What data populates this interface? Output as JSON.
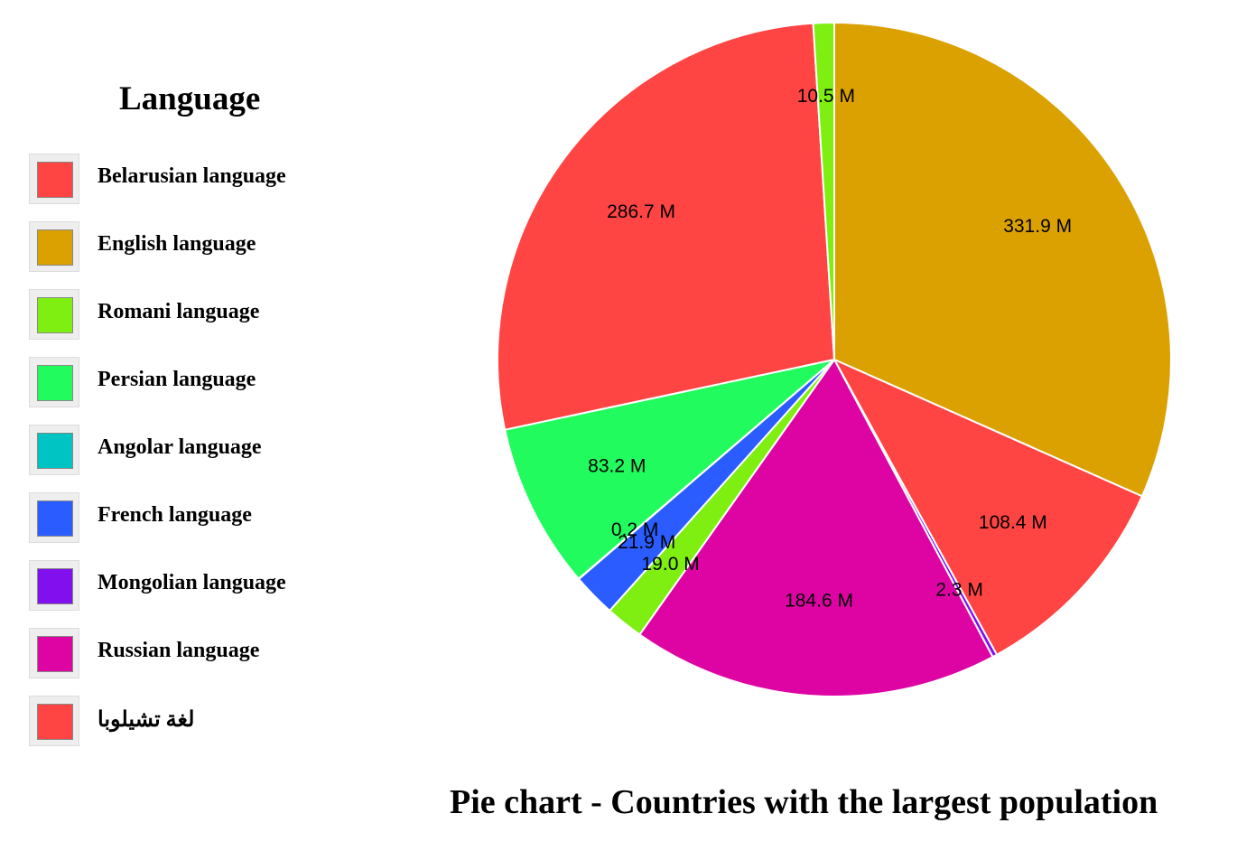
{
  "chart_data": {
    "type": "pie",
    "title": "Pie chart - Countries with the largest population",
    "legend_title": "Language",
    "legend_position": "left",
    "legend": [
      {
        "label": "Belarusian language",
        "color": "#ff4444"
      },
      {
        "label": "English language",
        "color": "#dba100"
      },
      {
        "label": "Romani language",
        "color": "#7eef11"
      },
      {
        "label": "Persian language",
        "color": "#22fb5e"
      },
      {
        "label": "Angolar language",
        "color": "#00c4c4"
      },
      {
        "label": "French language",
        "color": "#2a5cff"
      },
      {
        "label": "Mongolian language",
        "color": "#8010ee"
      },
      {
        "label": "Russian language",
        "color": "#de04a4"
      },
      {
        "label": "لغة تشيلوبا",
        "color": "#ff4444"
      }
    ],
    "slices": [
      {
        "value": 331.9,
        "label": "331.9 M",
        "color": "#dba100"
      },
      {
        "value": 108.4,
        "label": "108.4 M",
        "color": "#ff4444"
      },
      {
        "value": 2.3,
        "label": "2.3 M",
        "color": "#8010ee"
      },
      {
        "value": 184.6,
        "label": "184.6 M",
        "color": "#de04a4"
      },
      {
        "value": 19.0,
        "label": "19.0 M",
        "color": "#7eef11"
      },
      {
        "value": 21.9,
        "label": "21.9 M",
        "color": "#2a5cff"
      },
      {
        "value": 0.2,
        "label": "0.2 M",
        "color": "#00c4c4"
      },
      {
        "value": 83.2,
        "label": "83.2 M",
        "color": "#22fb5e"
      },
      {
        "value": 286.7,
        "label": "286.7 M",
        "color": "#ff4444"
      },
      {
        "value": 10.5,
        "label": "10.5 M",
        "color": "#7eef11"
      }
    ]
  }
}
